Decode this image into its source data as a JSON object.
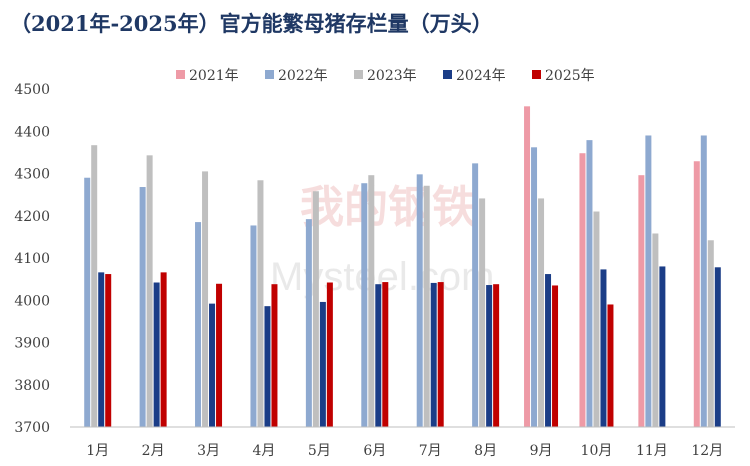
{
  "title": "（2021年-2025年）官方能繁母猪存栏量（万头）",
  "watermark": {
    "brand_cn": "我的钢铁",
    "brand_en": "Mysteel.com"
  },
  "colors": {
    "2021年": "#ee9aa6",
    "2022年": "#8ea9d0",
    "2023年": "#bfbfbf",
    "2024年": "#1b3d87",
    "2025年": "#c00000"
  },
  "chart_data": {
    "type": "bar",
    "title": "（2021年-2025年）官方能繁母猪存栏量（万头）",
    "unit": "万头",
    "categories": [
      "1月",
      "2月",
      "3月",
      "4月",
      "5月",
      "6月",
      "7月",
      "8月",
      "9月",
      "10月",
      "11月",
      "12月"
    ],
    "ylim": [
      3700,
      4500
    ],
    "yticks": [
      3700,
      3800,
      3900,
      4000,
      4100,
      4200,
      4300,
      4400,
      4500
    ],
    "legend_position": "top-center",
    "grid": false,
    "series": [
      {
        "name": "2021年",
        "values": [
          null,
          null,
          null,
          null,
          null,
          null,
          null,
          null,
          4459,
          4348,
          4296,
          4329
        ]
      },
      {
        "name": "2022年",
        "values": [
          4290,
          4268,
          4185,
          4177,
          4192,
          4277,
          4298,
          4324,
          4362,
          4379,
          4390,
          4390
        ]
      },
      {
        "name": "2023年",
        "values": [
          4367,
          4343,
          4305,
          4284,
          4258,
          4296,
          4271,
          4241,
          4241,
          4210,
          4158,
          4142
        ]
      },
      {
        "name": "2024年",
        "values": [
          4066,
          4042,
          3992,
          3986,
          3996,
          4038,
          4041,
          4036,
          4062,
          4073,
          4080,
          4078
        ]
      },
      {
        "name": "2025年",
        "values": [
          4062,
          4066,
          4039,
          4038,
          4042,
          4043,
          4043,
          4038,
          4035,
          3990,
          null,
          null
        ]
      }
    ]
  }
}
